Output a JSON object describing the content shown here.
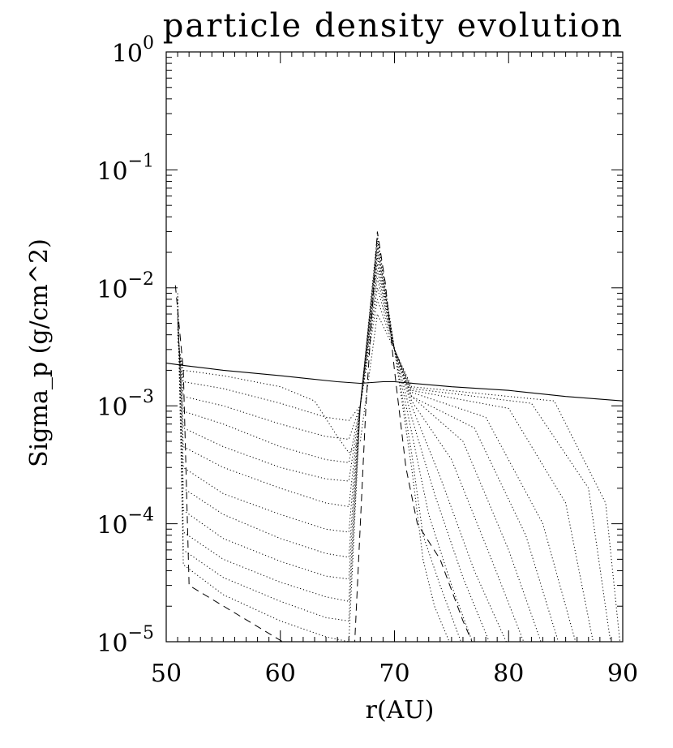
{
  "chart_data": {
    "type": "line",
    "title": "particle density evolution",
    "xlabel": "r(AU)",
    "ylabel": "Sigma_p (g/cm^2)",
    "xlim": [
      50,
      90
    ],
    "ylim": [
      1e-05,
      1
    ],
    "yscale": "log",
    "grid": false,
    "xticks": [
      50,
      60,
      70,
      80,
      90
    ],
    "yticks": [
      {
        "value": 1e-05,
        "base": "10",
        "exp": "−5"
      },
      {
        "value": 0.0001,
        "base": "10",
        "exp": "−4"
      },
      {
        "value": 0.001,
        "base": "10",
        "exp": "−3"
      },
      {
        "value": 0.01,
        "base": "10",
        "exp": "−2"
      },
      {
        "value": 0.1,
        "base": "10",
        "exp": "−1"
      },
      {
        "value": 1,
        "base": "10",
        "exp": "0"
      }
    ],
    "series": [
      {
        "style": "solid",
        "x": [
          50,
          51.5,
          55,
          60,
          65,
          67,
          69,
          70,
          75,
          80,
          85,
          90
        ],
        "y": [
          0.0023,
          0.0022,
          0.002,
          0.0018,
          0.0016,
          0.00155,
          0.0016,
          0.0016,
          0.00145,
          0.00135,
          0.0012,
          0.0011
        ]
      },
      {
        "style": "dashed",
        "x": [
          50.8,
          51.5,
          52,
          61
        ],
        "y": [
          0.0105,
          0.002,
          3e-05,
          9e-06
        ]
      },
      {
        "style": "dashed",
        "x": [
          66.5,
          67.5,
          68.5,
          69.2,
          70,
          71,
          72,
          74,
          76,
          77
        ],
        "y": [
          9e-06,
          0.001,
          0.03,
          0.011,
          0.002,
          0.0003,
          0.0001,
          5e-05,
          1.5e-05,
          9e-06
        ]
      },
      {
        "style": "dotted",
        "x": [
          51,
          51.5,
          55,
          60,
          64,
          66,
          67,
          68.5,
          70,
          71.5,
          72.5,
          73.5,
          75
        ],
        "y": [
          0.009,
          4.5e-05,
          2.5e-05,
          1.5e-05,
          1.1e-05,
          1e-05,
          0.001,
          0.028,
          0.003,
          0.0003,
          5e-05,
          2e-05,
          9e-06
        ]
      },
      {
        "style": "dotted",
        "x": [
          51,
          51.5,
          55,
          60,
          64,
          66,
          67,
          68.5,
          70,
          71.5,
          72.5,
          74,
          76
        ],
        "y": [
          0.0085,
          6e-05,
          3.5e-05,
          2.2e-05,
          1.6e-05,
          1.5e-05,
          0.001,
          0.026,
          0.003,
          0.0004,
          8e-05,
          3e-05,
          9e-06
        ]
      },
      {
        "style": "dotted",
        "x": [
          51,
          51.5,
          55,
          60,
          64,
          66,
          67,
          68.5,
          70,
          71.5,
          73,
          75,
          77
        ],
        "y": [
          0.008,
          8.5e-05,
          5e-05,
          3.2e-05,
          2.4e-05,
          2.2e-05,
          0.001,
          0.024,
          0.003,
          0.0006,
          0.00012,
          3e-05,
          9e-06
        ]
      },
      {
        "style": "dotted",
        "x": [
          51,
          51.5,
          55,
          60,
          64,
          66,
          67,
          68.5,
          70,
          71.5,
          73.5,
          76,
          78.5
        ],
        "y": [
          0.0075,
          0.00013,
          7.5e-05,
          4.8e-05,
          3.6e-05,
          3.4e-05,
          0.001,
          0.022,
          0.003,
          0.0008,
          0.00018,
          3.5e-05,
          9e-06
        ]
      },
      {
        "style": "dotted",
        "x": [
          51,
          51.5,
          55,
          60,
          64,
          66,
          67,
          68.5,
          70,
          71.5,
          74,
          77,
          80
        ],
        "y": [
          0.007,
          0.0002,
          0.00012,
          7.5e-05,
          5.6e-05,
          5.2e-05,
          0.001,
          0.02,
          0.003,
          0.001,
          0.00025,
          4e-05,
          9e-06
        ]
      },
      {
        "style": "dotted",
        "x": [
          51,
          51.5,
          55,
          60,
          64,
          66,
          67,
          68.5,
          70,
          71.5,
          75,
          78.5,
          81.5
        ],
        "y": [
          0.0065,
          0.0003,
          0.00018,
          0.00012,
          9e-05,
          8.5e-05,
          0.001,
          0.018,
          0.003,
          0.0011,
          0.00035,
          5e-05,
          9e-06
        ]
      },
      {
        "style": "dotted",
        "x": [
          51,
          51.5,
          55,
          60,
          64,
          66,
          67,
          68.5,
          70,
          71.5,
          76,
          80,
          83
        ],
        "y": [
          0.006,
          0.00045,
          0.0003,
          0.0002,
          0.00015,
          0.00014,
          0.001,
          0.016,
          0.003,
          0.0012,
          0.0005,
          6e-05,
          9e-06
        ]
      },
      {
        "style": "dotted",
        "x": [
          51,
          51.5,
          55,
          60,
          64,
          66,
          67,
          68.5,
          70,
          71.5,
          77,
          81.5,
          84.5
        ],
        "y": [
          0.0055,
          0.00065,
          0.00045,
          0.0003,
          0.00024,
          0.00023,
          0.001,
          0.014,
          0.003,
          0.0012,
          0.00065,
          8e-05,
          9e-06
        ]
      },
      {
        "style": "dotted",
        "x": [
          51,
          51.5,
          55,
          60,
          64,
          66,
          67,
          68.5,
          70,
          71.5,
          78,
          83,
          86
        ],
        "y": [
          0.005,
          0.0009,
          0.0007,
          0.00045,
          0.00035,
          0.00033,
          0.001,
          0.012,
          0.003,
          0.0013,
          0.0008,
          0.0001,
          9e-06
        ]
      },
      {
        "style": "dotted",
        "x": [
          51,
          51.5,
          55,
          60,
          64,
          66,
          67,
          68.5,
          70,
          71.5,
          80,
          85,
          87.5
        ],
        "y": [
          0.0045,
          0.0012,
          0.001,
          0.0007,
          0.00055,
          0.00052,
          0.001,
          0.01,
          0.003,
          0.00135,
          0.00095,
          0.00015,
          9e-06
        ]
      },
      {
        "style": "dotted",
        "x": [
          51,
          51.5,
          55,
          60,
          64,
          66,
          67,
          68.5,
          70,
          71.5,
          82,
          87,
          89
        ],
        "y": [
          0.004,
          0.0016,
          0.0014,
          0.00105,
          0.0008,
          0.00075,
          0.001,
          0.008,
          0.003,
          0.0014,
          0.00105,
          0.0002,
          9e-06
        ]
      },
      {
        "style": "dotted",
        "x": [
          51,
          51.5,
          55,
          60,
          63,
          65,
          66,
          67,
          68.5,
          70,
          71.5,
          84,
          88.5,
          89.8
        ],
        "y": [
          0.0035,
          0.002,
          0.0018,
          0.00145,
          0.0011,
          0.00055,
          0.0004,
          0.0005,
          0.006,
          0.003,
          0.00145,
          0.0011,
          0.00015,
          9e-06
        ]
      }
    ]
  }
}
